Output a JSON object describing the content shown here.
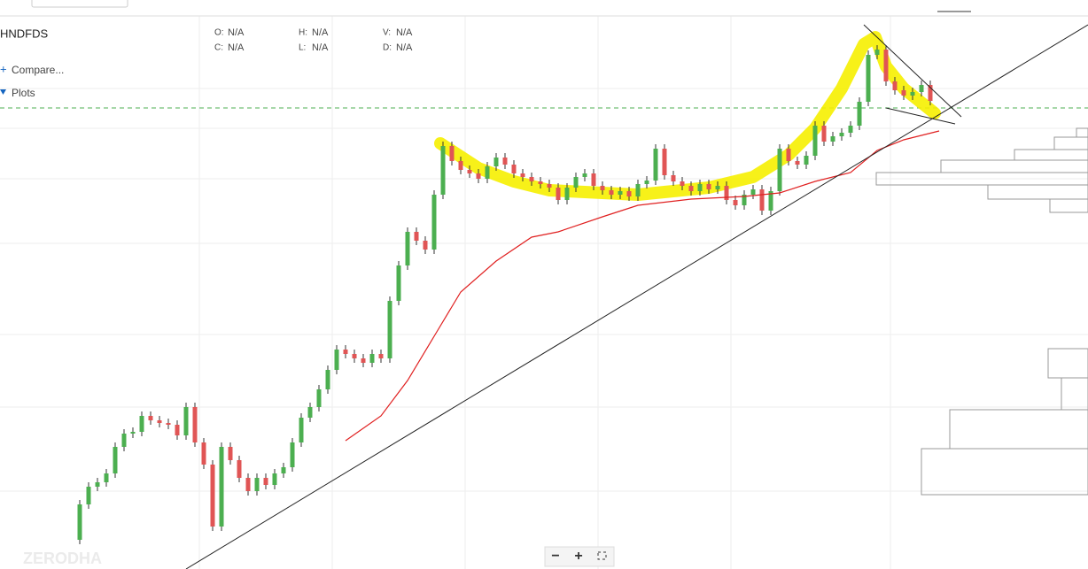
{
  "header": {
    "symbol": "HNDFDS",
    "ohlc": [
      {
        "label": "O:",
        "value": "N/A"
      },
      {
        "label": "H:",
        "value": "N/A"
      },
      {
        "label": "V:",
        "value": "N/A"
      },
      {
        "label": "C:",
        "value": "N/A"
      },
      {
        "label": "L:",
        "value": "N/A"
      },
      {
        "label": "D:",
        "value": "N/A"
      }
    ],
    "compare": "Compare...",
    "plots": "Plots"
  },
  "watermark": "ZERODHA",
  "zoom": {
    "out": "−",
    "in": "+"
  },
  "chart_data": {
    "type": "candlestick",
    "ylim": [
      0,
      640
    ],
    "series": [
      {
        "color_up": "#4caf50",
        "color_down": "#e05555",
        "values": [
          30,
          70,
          90,
          95,
          105,
          135,
          150,
          152,
          170,
          165,
          162,
          160,
          148,
          180,
          140,
          115,
          45,
          135,
          120,
          100,
          85,
          100,
          92,
          105,
          112,
          140,
          168,
          180,
          200,
          222,
          245,
          240,
          235,
          230,
          240,
          235,
          300,
          340,
          378,
          368,
          358,
          420,
          475,
          458,
          448,
          444,
          438,
          452,
          462,
          454,
          444,
          440,
          435,
          432,
          428,
          414,
          428,
          440,
          444,
          430,
          425,
          420,
          424,
          418,
          432,
          436,
          472,
          442,
          435,
          430,
          424,
          432,
          426,
          430,
          414,
          408,
          420,
          426,
          402,
          424,
          472,
          458,
          454,
          464,
          498,
          480,
          486,
          490,
          498,
          525,
          578,
          584,
          548,
          538,
          532,
          536,
          544,
          526
        ]
      },
      {
        "color": "#e02020",
        "x": [
          31,
          35,
          38,
          41,
          44,
          48,
          52,
          55,
          60,
          64,
          70,
          76,
          80,
          84,
          88,
          91,
          94,
          98
        ],
        "values": [
          142,
          170,
          210,
          260,
          310,
          345,
          372,
          378,
          395,
          408,
          415,
          418,
          422,
          435,
          445,
          470,
          482,
          492
        ]
      }
    ]
  }
}
